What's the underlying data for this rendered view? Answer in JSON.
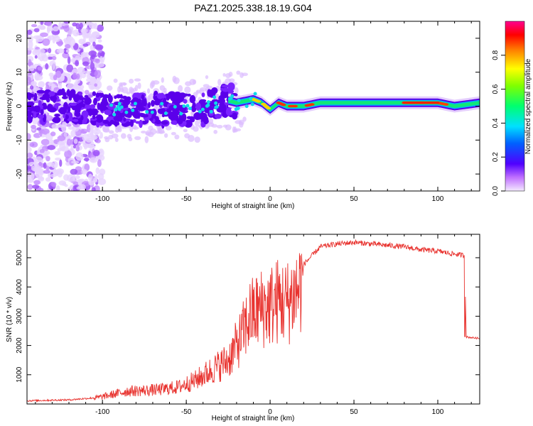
{
  "title": "PAZ1.2025.338.18.19.G04",
  "chart_data": [
    {
      "type": "heatmap",
      "xlabel": "Height of straight line (km)",
      "ylabel": "Frequency (Hz)",
      "xlim": [
        -145,
        125
      ],
      "ylim": [
        -25,
        25
      ],
      "xticks": [
        -100,
        -50,
        0,
        50,
        100
      ],
      "yticks": [
        -20,
        -10,
        0,
        10,
        20
      ],
      "colorbar": {
        "label": "Normalized spectral amplitude",
        "range": [
          0,
          1
        ],
        "ticks": [
          0.0,
          0.2,
          0.4,
          0.6,
          0.8
        ],
        "tick_labels": [
          "0.0",
          "0.2",
          "0.4",
          "0.6",
          "0.8"
        ]
      },
      "ridge": {
        "x": [
          -145,
          -120,
          -100,
          -80,
          -60,
          -40,
          -28,
          -20,
          -10,
          -5,
          0,
          5,
          10,
          20,
          30,
          50,
          75,
          100,
          110,
          125
        ],
        "freq": [
          0,
          0,
          -1,
          -1,
          -1,
          -1,
          2,
          1,
          2,
          1,
          -1,
          1,
          0,
          0,
          1,
          1,
          1,
          1,
          0,
          1
        ]
      }
    },
    {
      "type": "line",
      "xlabel": "Height of straight line (km)",
      "ylabel": "SNR (10 * v/v)",
      "xlim": [
        -145,
        125
      ],
      "ylim": [
        0,
        5800
      ],
      "xticks": [
        -100,
        -50,
        0,
        50,
        100
      ],
      "yticks": [
        1000,
        2000,
        3000,
        4000,
        5000
      ],
      "series": [
        {
          "name": "SNR",
          "color": "#e8322e",
          "x": [
            -145,
            -120,
            -105,
            -95,
            -85,
            -75,
            -65,
            -55,
            -45,
            -35,
            -25,
            -18,
            -12,
            -5,
            0,
            5,
            10,
            15,
            20,
            25,
            30,
            40,
            50,
            60,
            70,
            80,
            90,
            100,
            110,
            116,
            117,
            120,
            125
          ],
          "y": [
            120,
            150,
            220,
            350,
            500,
            520,
            560,
            650,
            900,
            1300,
            1700,
            2500,
            3400,
            3700,
            3800,
            4000,
            3900,
            4300,
            4800,
            5100,
            5400,
            5500,
            5550,
            5500,
            5450,
            5400,
            5300,
            5250,
            5150,
            5100,
            2300,
            2280,
            2250
          ]
        }
      ]
    }
  ]
}
